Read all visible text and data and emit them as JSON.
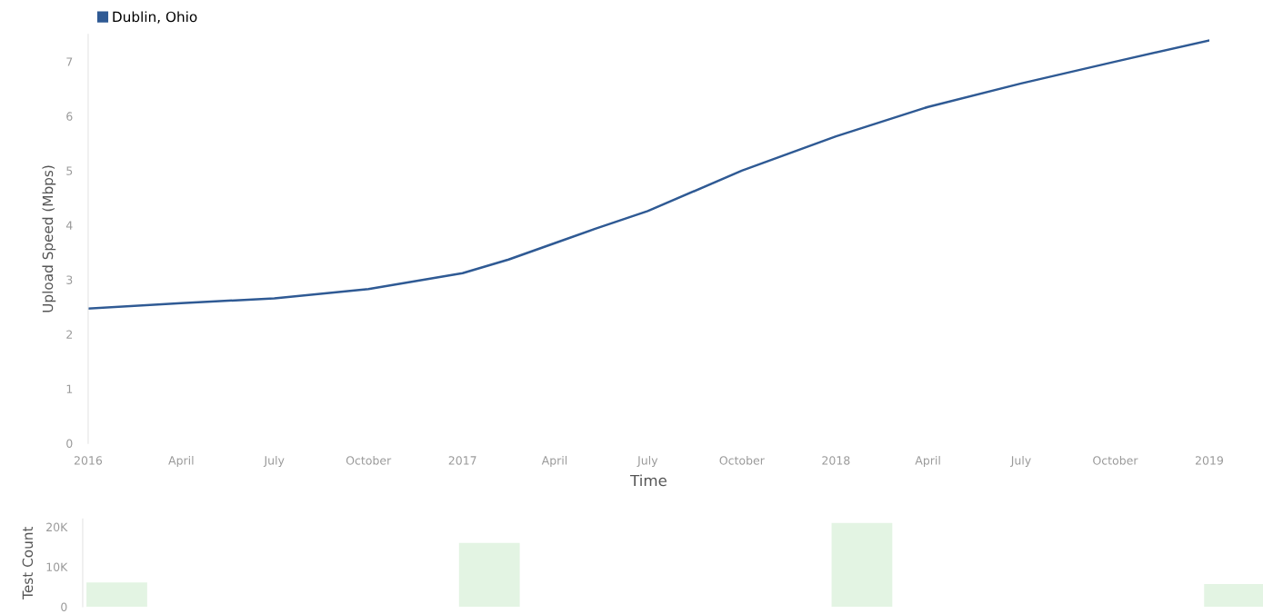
{
  "chart_data": [
    {
      "type": "line",
      "xlabel": "Time",
      "ylabel": "Upload Speed (Mbps)",
      "x": [
        "2016-01-01",
        "2016-04-01",
        "2016-07-01",
        "2016-10-01",
        "2017-01-01",
        "2017-02-15",
        "2017-04-01",
        "2017-05-10",
        "2017-07-01",
        "2017-10-01",
        "2018-01-01",
        "2018-04-01",
        "2018-07-01",
        "2018-10-01",
        "2019-01-01"
      ],
      "series": [
        {
          "name": "Dublin, Ohio",
          "color": "#2f5a94",
          "values": [
            2.47,
            2.57,
            2.66,
            2.83,
            3.12,
            3.37,
            3.67,
            3.93,
            4.26,
            5.0,
            5.63,
            6.17,
            6.6,
            7.0,
            7.39
          ]
        }
      ],
      "xlim": [
        "2016-01-01",
        "2019-01-01"
      ],
      "xticks": [
        {
          "value": "2016-01-01",
          "label": "2016"
        },
        {
          "value": "2016-04-01",
          "label": "April"
        },
        {
          "value": "2016-07-01",
          "label": "July"
        },
        {
          "value": "2016-10-01",
          "label": "October"
        },
        {
          "value": "2017-01-01",
          "label": "2017"
        },
        {
          "value": "2017-04-01",
          "label": "April"
        },
        {
          "value": "2017-07-01",
          "label": "July"
        },
        {
          "value": "2017-10-01",
          "label": "October"
        },
        {
          "value": "2018-01-01",
          "label": "2018"
        },
        {
          "value": "2018-04-01",
          "label": "April"
        },
        {
          "value": "2018-07-01",
          "label": "July"
        },
        {
          "value": "2018-10-01",
          "label": "October"
        },
        {
          "value": "2019-01-01",
          "label": "2019"
        }
      ],
      "ylim": [
        0,
        7.5
      ],
      "yticks": [
        0,
        1,
        2,
        3,
        4,
        5,
        6,
        7
      ],
      "grid": false,
      "legend": "top left",
      "marker": "none",
      "line_style": "solid"
    },
    {
      "type": "bar",
      "ylabel": "Test Count",
      "categories": [
        null,
        null,
        null,
        null
      ],
      "series": [
        {
          "color": "#e3f4e3",
          "values": [
            6100,
            16000,
            21000,
            5700
          ]
        }
      ],
      "ylim": [
        0,
        22000
      ],
      "yticks": [
        0,
        {
          "value": 10000,
          "label": "10K"
        },
        {
          "value": 20000,
          "label": "20K"
        }
      ],
      "tick_labels": "y",
      "grid": false,
      "legend": false
    }
  ]
}
